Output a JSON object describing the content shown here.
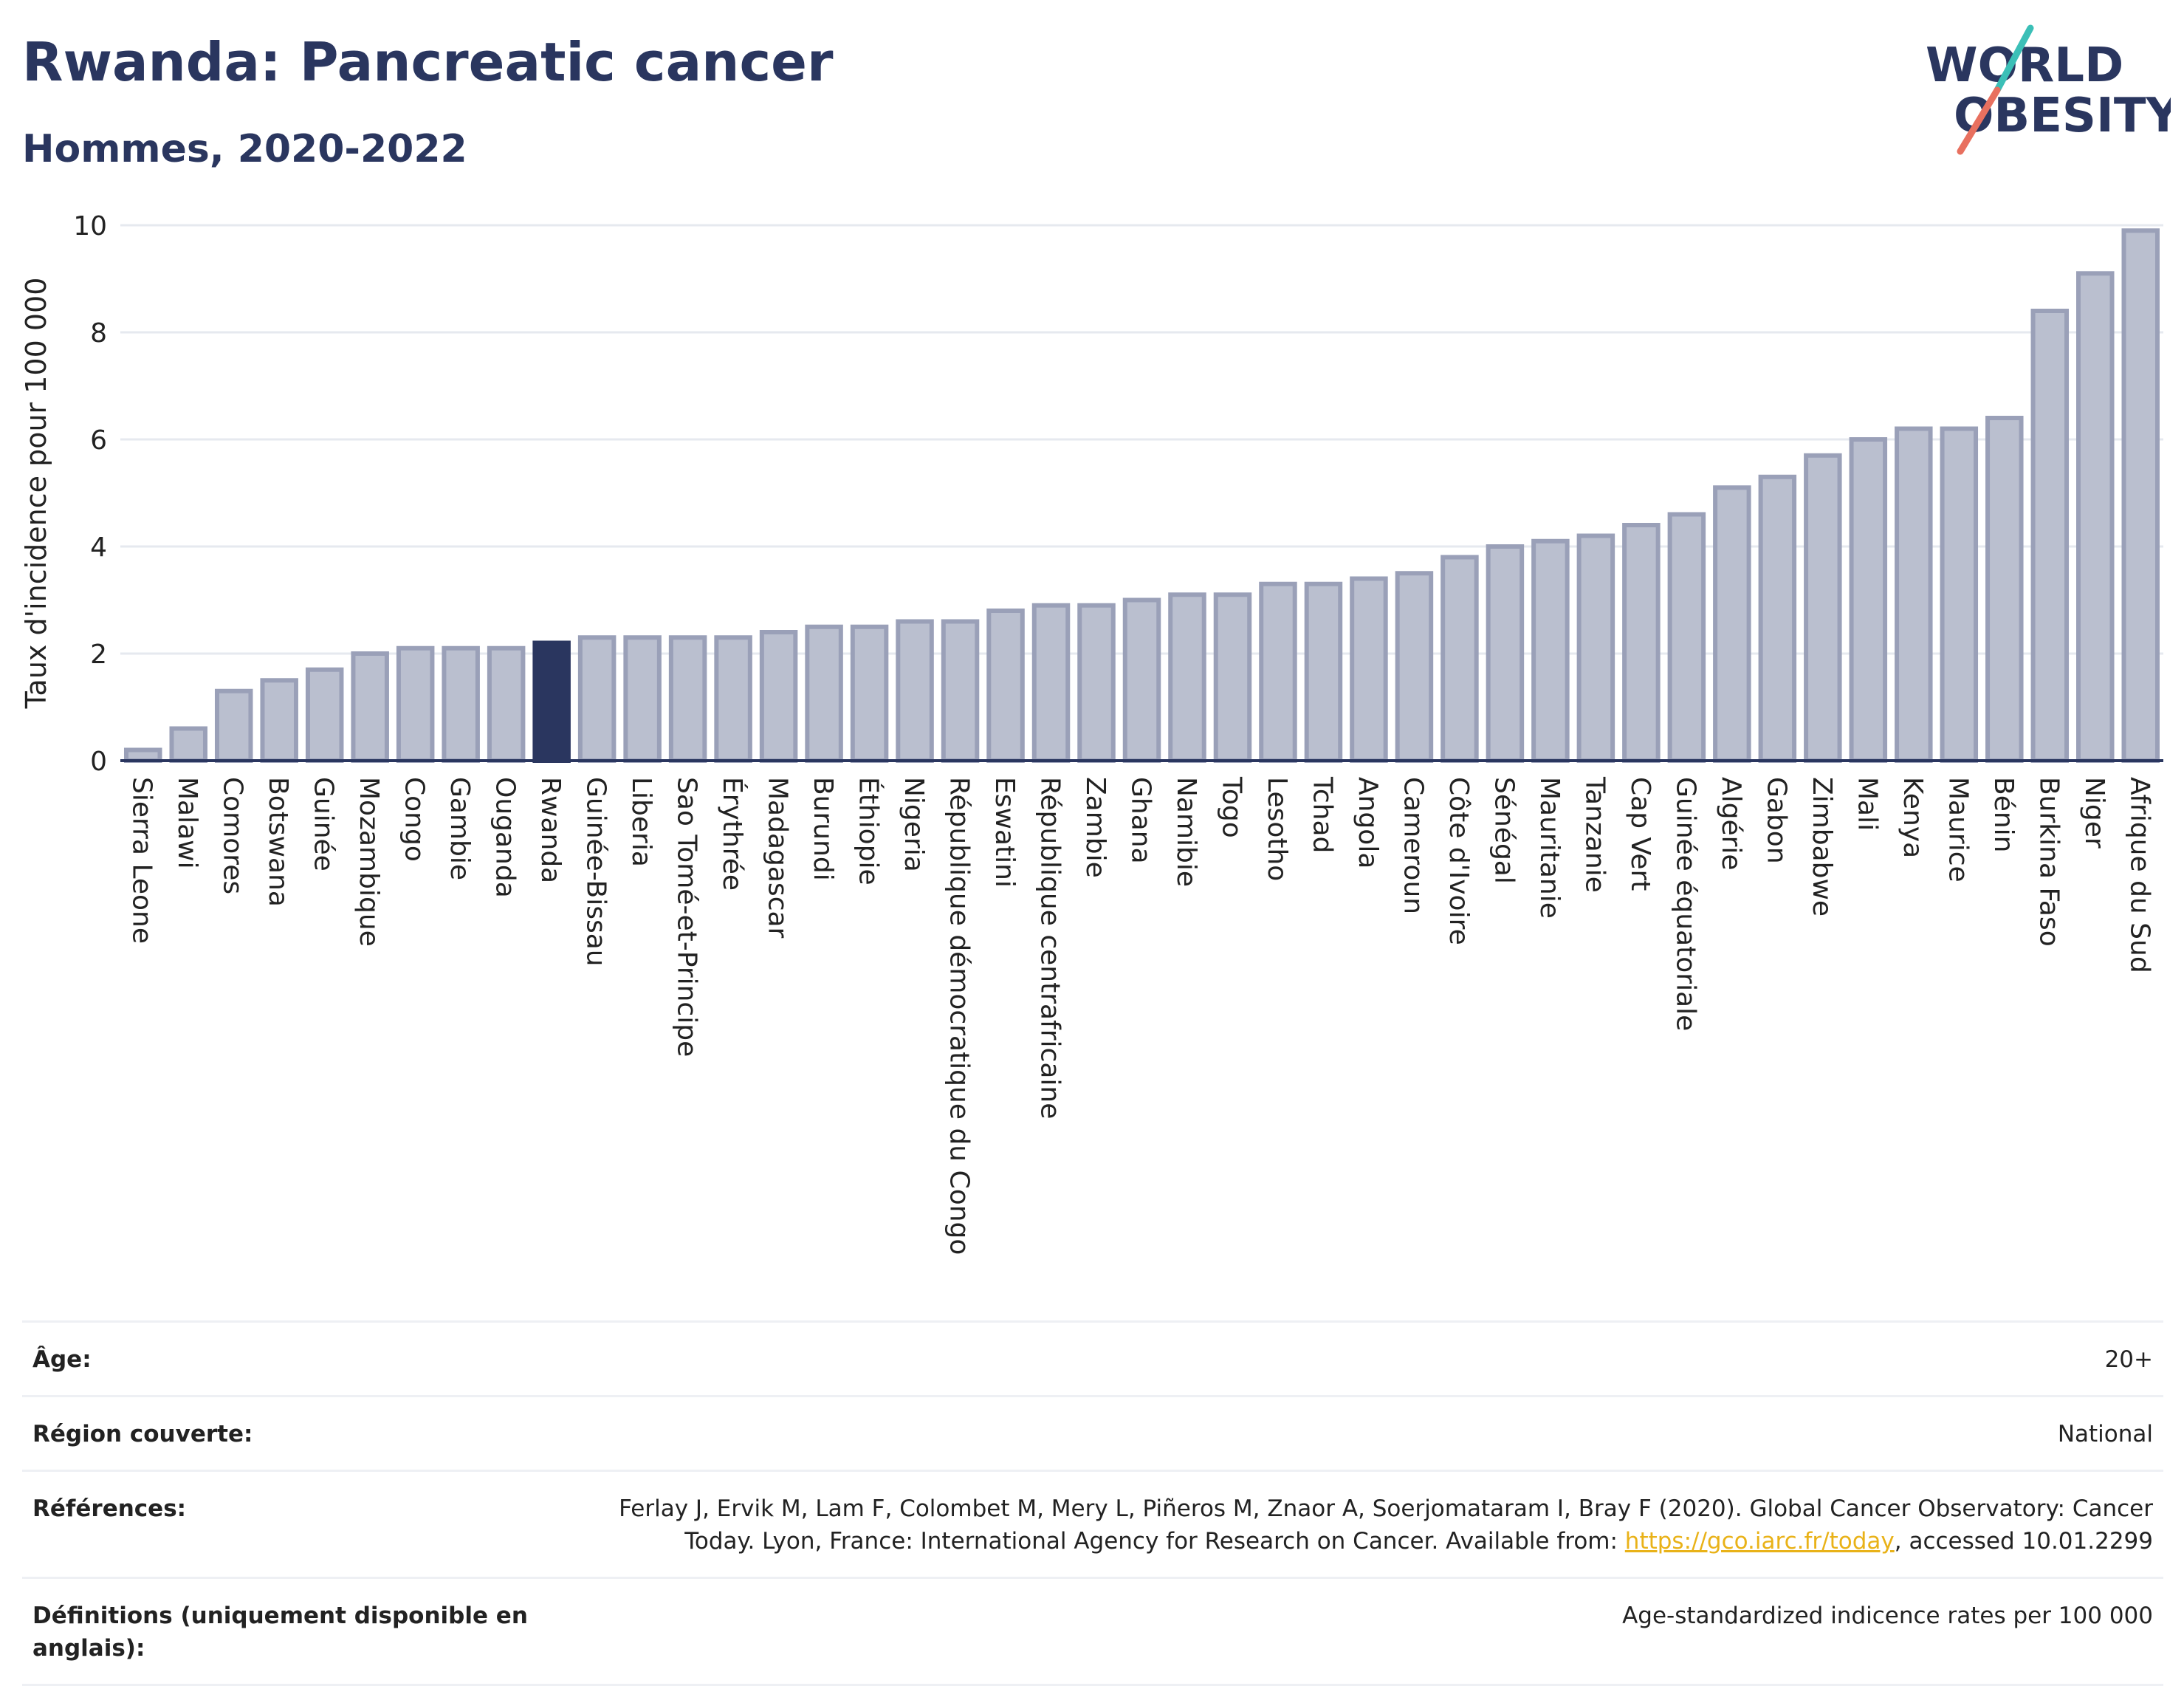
{
  "header": {
    "title": "Rwanda: Pancreatic cancer",
    "subtitle": "Hommes, 2020-2022",
    "logo_line1": "WORLD",
    "logo_line2": "OBESITY"
  },
  "colors": {
    "bar": "#babfcf",
    "bar_stroke": "#9aa0b8",
    "highlight": "#2a365f",
    "logo_teal": "#3bbfb7",
    "logo_coral": "#e8705f",
    "link": "#e9b218"
  },
  "chart_data": {
    "type": "bar",
    "title": "Rwanda: Pancreatic cancer",
    "subtitle": "Hommes, 2020-2022",
    "ylabel": "Taux d'incidence pour 100 000",
    "xlabel": "",
    "ylim": [
      0,
      10
    ],
    "yticks": [
      0,
      2,
      4,
      6,
      8,
      10
    ],
    "grid": true,
    "highlight": "Rwanda",
    "categories": [
      "Sierra Leone",
      "Malawi",
      "Comores",
      "Botswana",
      "Guinée",
      "Mozambique",
      "Congo",
      "Gambie",
      "Ouganda",
      "Rwanda",
      "Guinée-Bissau",
      "Liberia",
      "Sao Tomé-et-Principe",
      "Érythrée",
      "Madagascar",
      "Burundi",
      "Éthiopie",
      "Nigeria",
      "République démocratique du Congo",
      "Eswatini",
      "République centrafricaine",
      "Zambie",
      "Ghana",
      "Namibie",
      "Togo",
      "Lesotho",
      "Tchad",
      "Angola",
      "Cameroun",
      "Côte d'Ivoire",
      "Sénégal",
      "Mauritanie",
      "Tanzanie",
      "Cap Vert",
      "Guinée équatoriale",
      "Algérie",
      "Gabon",
      "Zimbabwe",
      "Mali",
      "Kenya",
      "Maurice",
      "Bénin",
      "Burkina Faso",
      "Niger",
      "Afrique du Sud"
    ],
    "values": [
      0.2,
      0.6,
      1.3,
      1.5,
      1.7,
      2.0,
      2.1,
      2.1,
      2.1,
      2.2,
      2.3,
      2.3,
      2.3,
      2.3,
      2.4,
      2.5,
      2.5,
      2.6,
      2.6,
      2.8,
      2.9,
      2.9,
      3.0,
      3.1,
      3.1,
      3.3,
      3.3,
      3.4,
      3.5,
      3.8,
      4.0,
      4.1,
      4.2,
      4.4,
      4.6,
      5.1,
      5.3,
      5.7,
      6.0,
      6.2,
      6.2,
      6.4,
      8.4,
      9.1,
      9.9
    ]
  },
  "info": {
    "rows": [
      {
        "label": "Âge:",
        "value": "20+"
      },
      {
        "label": "Région couverte:",
        "value": "National"
      },
      {
        "label": "Références:",
        "value_pre": "Ferlay J, Ervik M, Lam F, Colombet M, Mery L, Piñeros M, Znaor A, Soerjomataram I, Bray F (2020). Global Cancer Observatory: Cancer Today. Lyon, France: International Agency for Research on Cancer. Available from: ",
        "link": "https://gco.iarc.fr/today",
        "value_post": ", accessed 10.01.2299"
      },
      {
        "label": "Définitions (uniquement disponible en anglais):",
        "value": "Age-standardized indicence rates per 100 000"
      }
    ]
  }
}
